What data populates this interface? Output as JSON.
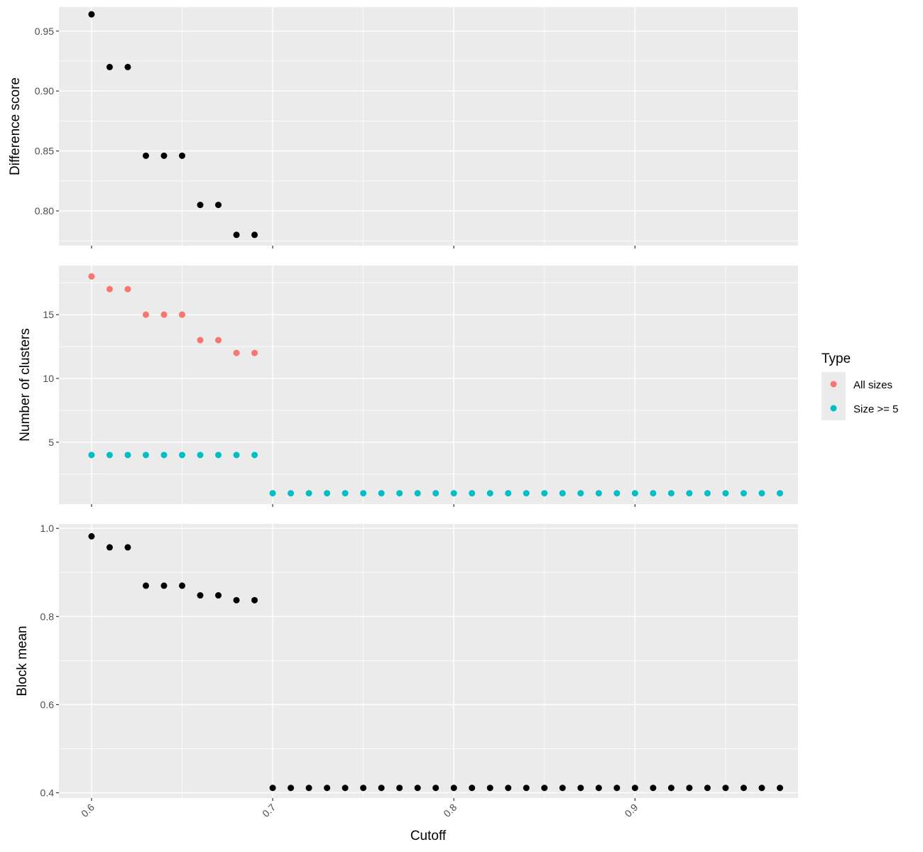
{
  "chart_data": [
    {
      "type": "scatter",
      "ylabel": "Difference score",
      "xlabel": "",
      "xlim": [
        0.582,
        0.99
      ],
      "ylim": [
        0.771,
        0.97
      ],
      "x_ticks": [
        0.6,
        0.7,
        0.8,
        0.9
      ],
      "y_ticks": [
        0.8,
        0.85,
        0.9,
        0.95
      ],
      "y_tick_labels": [
        "0.80",
        "0.85",
        "0.90",
        "0.95"
      ],
      "grid": true,
      "series": [
        {
          "color": "#000000",
          "x": [
            0.6,
            0.61,
            0.62,
            0.63,
            0.64,
            0.65,
            0.66,
            0.67,
            0.68,
            0.69
          ],
          "y": [
            0.964,
            0.92,
            0.92,
            0.846,
            0.846,
            0.846,
            0.805,
            0.805,
            0.78,
            0.78
          ]
        }
      ]
    },
    {
      "type": "scatter",
      "ylabel": "Number of clusters",
      "xlabel": "",
      "xlim": [
        0.582,
        0.99
      ],
      "ylim": [
        0.15,
        18.85
      ],
      "x_ticks": [
        0.6,
        0.7,
        0.8,
        0.9
      ],
      "y_ticks": [
        5,
        10,
        15
      ],
      "y_tick_labels": [
        "5",
        "10",
        "15"
      ],
      "grid": true,
      "legend": {
        "title": "Type",
        "position": "right",
        "entries": [
          {
            "label": "All sizes",
            "color": "#F8766D"
          },
          {
            "label": "Size >= 5",
            "color": "#00BFC4"
          }
        ]
      },
      "series": [
        {
          "name": "All sizes",
          "color": "#F8766D",
          "x": [
            0.6,
            0.61,
            0.62,
            0.63,
            0.64,
            0.65,
            0.66,
            0.67,
            0.68,
            0.69
          ],
          "y": [
            18,
            17,
            17,
            15,
            15,
            15,
            13,
            13,
            12,
            12
          ]
        },
        {
          "name": "Size >= 5",
          "color": "#00BFC4",
          "x": [
            0.6,
            0.61,
            0.62,
            0.63,
            0.64,
            0.65,
            0.66,
            0.67,
            0.68,
            0.69,
            0.7,
            0.71,
            0.72,
            0.73,
            0.74,
            0.75,
            0.76,
            0.77,
            0.78,
            0.79,
            0.8,
            0.81,
            0.82,
            0.83,
            0.84,
            0.85,
            0.86,
            0.87,
            0.88,
            0.89,
            0.9,
            0.91,
            0.92,
            0.93,
            0.94,
            0.95,
            0.96,
            0.97,
            0.98
          ],
          "y": [
            4,
            4,
            4,
            4,
            4,
            4,
            4,
            4,
            4,
            4,
            1,
            1,
            1,
            1,
            1,
            1,
            1,
            1,
            1,
            1,
            1,
            1,
            1,
            1,
            1,
            1,
            1,
            1,
            1,
            1,
            1,
            1,
            1,
            1,
            1,
            1,
            1,
            1,
            1
          ]
        }
      ]
    },
    {
      "type": "scatter",
      "ylabel": "Block mean",
      "xlabel": "Cutoff",
      "xlim": [
        0.582,
        0.99
      ],
      "ylim": [
        0.388,
        1.01
      ],
      "x_ticks": [
        0.6,
        0.7,
        0.8,
        0.9
      ],
      "x_tick_labels": [
        "0.6",
        "0.7",
        "0.8",
        "0.9"
      ],
      "y_ticks": [
        0.4,
        0.6,
        0.8,
        1.0
      ],
      "y_tick_labels": [
        "0.4",
        "0.6",
        "0.8",
        "1.0"
      ],
      "grid": true,
      "series": [
        {
          "color": "#000000",
          "x": [
            0.6,
            0.61,
            0.62,
            0.63,
            0.64,
            0.65,
            0.66,
            0.67,
            0.68,
            0.69,
            0.7,
            0.71,
            0.72,
            0.73,
            0.74,
            0.75,
            0.76,
            0.77,
            0.78,
            0.79,
            0.8,
            0.81,
            0.82,
            0.83,
            0.84,
            0.85,
            0.86,
            0.87,
            0.88,
            0.89,
            0.9,
            0.91,
            0.92,
            0.93,
            0.94,
            0.95,
            0.96,
            0.97,
            0.98
          ],
          "y": [
            0.982,
            0.957,
            0.957,
            0.87,
            0.87,
            0.87,
            0.848,
            0.848,
            0.837,
            0.837,
            0.411,
            0.411,
            0.411,
            0.411,
            0.411,
            0.411,
            0.411,
            0.411,
            0.411,
            0.411,
            0.411,
            0.411,
            0.411,
            0.411,
            0.411,
            0.411,
            0.411,
            0.411,
            0.411,
            0.411,
            0.411,
            0.411,
            0.411,
            0.411,
            0.411,
            0.411,
            0.411,
            0.411,
            0.411
          ]
        }
      ]
    }
  ]
}
